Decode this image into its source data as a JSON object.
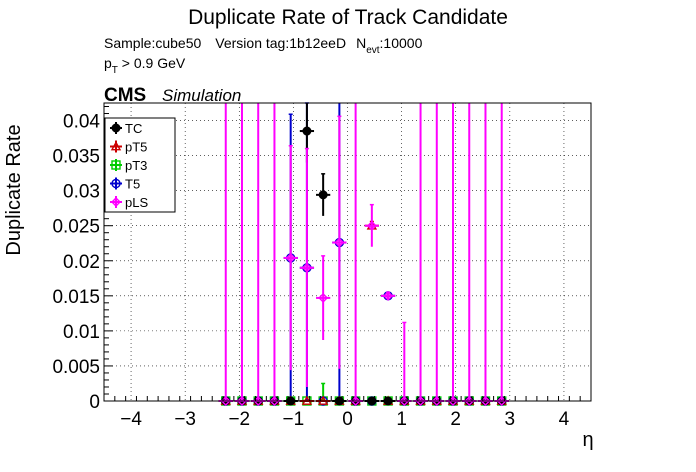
{
  "chart_data": {
    "type": "scatter",
    "title": "Duplicate Rate of Track Candidate",
    "info_sample": "Sample:cube50",
    "info_version": "Version tag:1b12eeD",
    "info_nevt_label": "N",
    "info_nevt_sub": "evt",
    "info_nevt_value": ":10000",
    "cut_label": "p",
    "cut_sub": "T",
    "cut_value": " > 0.9 GeV",
    "experiment": "CMS",
    "experiment_tag": "Simulation",
    "xlabel": "η",
    "ylabel": "Duplicate Rate",
    "xlim": [
      -4.5,
      4.5
    ],
    "ylim": [
      0,
      0.0425
    ],
    "x_ticks": [
      -4,
      -3,
      -2,
      -1,
      0,
      1,
      2,
      3,
      4
    ],
    "x_tick_labels": [
      "−4",
      "−3",
      "−2",
      "−1",
      "0",
      "1",
      "2",
      "3",
      "4"
    ],
    "y_ticks": [
      0,
      0.005,
      0.01,
      0.015,
      0.02,
      0.025,
      0.03,
      0.035,
      0.04
    ],
    "y_tick_labels": [
      "0",
      "0.005",
      "0.01",
      "0.015",
      "0.02",
      "0.025",
      "0.03",
      "0.035",
      "0.04"
    ],
    "grid": true,
    "legend_position": "top-left",
    "bins": [
      -2.25,
      -1.95,
      -1.65,
      -1.35,
      -1.05,
      -0.75,
      -0.45,
      -0.15,
      0.15,
      0.45,
      0.75,
      1.05,
      1.35,
      1.65,
      1.95,
      2.25,
      2.55,
      2.85
    ],
    "bin_halfwidth": 0.15,
    "series": [
      {
        "name": "TC",
        "color": "#000000",
        "marker": "filled-circle",
        "y": [
          0,
          0,
          0,
          0,
          0,
          0.0385,
          0.0294,
          0,
          0,
          0,
          0,
          0,
          0,
          0,
          0,
          0,
          0,
          0
        ],
        "err": [
          0,
          0,
          0,
          0,
          0,
          0.0045,
          0.003,
          0,
          0,
          0,
          0,
          0,
          0,
          0,
          0,
          0,
          0,
          0
        ]
      },
      {
        "name": "pT5",
        "color": "#cc0000",
        "marker": "open-triangle",
        "y": [
          0,
          0,
          0,
          0,
          0,
          0,
          0,
          0,
          0,
          0.025,
          0,
          0,
          0,
          0,
          0,
          0,
          0,
          0
        ],
        "err": [
          0,
          0,
          0,
          0,
          0,
          0,
          0,
          0,
          0,
          0.0006,
          0,
          0,
          0,
          0,
          0,
          0,
          0,
          0
        ]
      },
      {
        "name": "pT3",
        "color": "#00cc00",
        "marker": "open-square",
        "y": [
          0,
          0,
          0,
          0,
          0,
          0,
          0,
          0,
          0,
          0,
          0,
          0,
          0,
          0,
          0,
          0,
          0,
          0
        ],
        "err": [
          0,
          0,
          0,
          0,
          0,
          0,
          0.0025,
          0,
          0,
          0,
          0,
          0,
          0,
          0,
          0,
          0,
          0,
          0
        ]
      },
      {
        "name": "T5",
        "color": "#0000cc",
        "marker": "open-circle",
        "y": [
          0,
          0,
          0,
          0,
          0.0204,
          0.019,
          0,
          0.0226,
          0,
          0,
          0.015,
          0,
          0,
          0,
          0,
          0,
          0,
          0
        ],
        "err": [
          0,
          0,
          0,
          0,
          0.0205,
          0.0235,
          0,
          0.0226,
          0,
          0,
          0.0005,
          0,
          0,
          0,
          0,
          0,
          0,
          0
        ]
      },
      {
        "name": "pLS",
        "color": "#ff00ff",
        "marker": "open-diamond",
        "y": [
          0,
          0,
          0,
          0,
          0.0204,
          0.019,
          0.0147,
          0.0226,
          0,
          0.025,
          0.015,
          0,
          0,
          0,
          0,
          0,
          0,
          0
        ],
        "err": [
          0.043,
          0.043,
          0.043,
          0.043,
          0.016,
          0.017,
          0.006,
          0.018,
          0.043,
          0.003,
          0.0005,
          0.0112,
          0.043,
          0.043,
          0.043,
          0.043,
          0.043,
          0.043
        ]
      }
    ]
  }
}
